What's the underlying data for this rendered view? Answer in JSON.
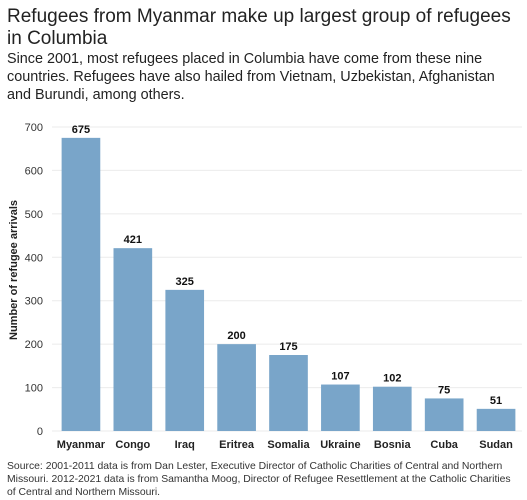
{
  "title": "Refugees from Myanmar make up largest group of refugees in Columbia",
  "subtitle": "Since 2001, most refugees placed in Columbia have come from these nine countries. Refugees have also hailed from Vietnam, Uzbekistan, Afghanistan and Burundi, among others.",
  "source": "Source: 2001-2011 data is from Dan Lester, Executive Director of Catholic Charities of Central and Northern Missouri. 2012-2021 data is from Samantha Moog, Director of Refugee Resettlement at the Catholic Charities of Central and Northern Missouri.",
  "colors": {
    "bar": "#79a5c9",
    "grid": "#ebebeb"
  },
  "chart_data": {
    "type": "bar",
    "categories": [
      "Myanmar",
      "Congo",
      "Iraq",
      "Eritrea",
      "Somalia",
      "Ukraine",
      "Bosnia",
      "Cuba",
      "Sudan"
    ],
    "values": [
      675,
      421,
      325,
      200,
      175,
      107,
      102,
      75,
      51
    ],
    "title": "Refugees from Myanmar make up largest group of refugees in Columbia",
    "xlabel": "",
    "ylabel": "Number of refugee arrivals",
    "ylim": [
      0,
      700
    ],
    "yticks": [
      0,
      100,
      200,
      300,
      400,
      500,
      600,
      700
    ],
    "grid": true,
    "data_labels": true
  }
}
